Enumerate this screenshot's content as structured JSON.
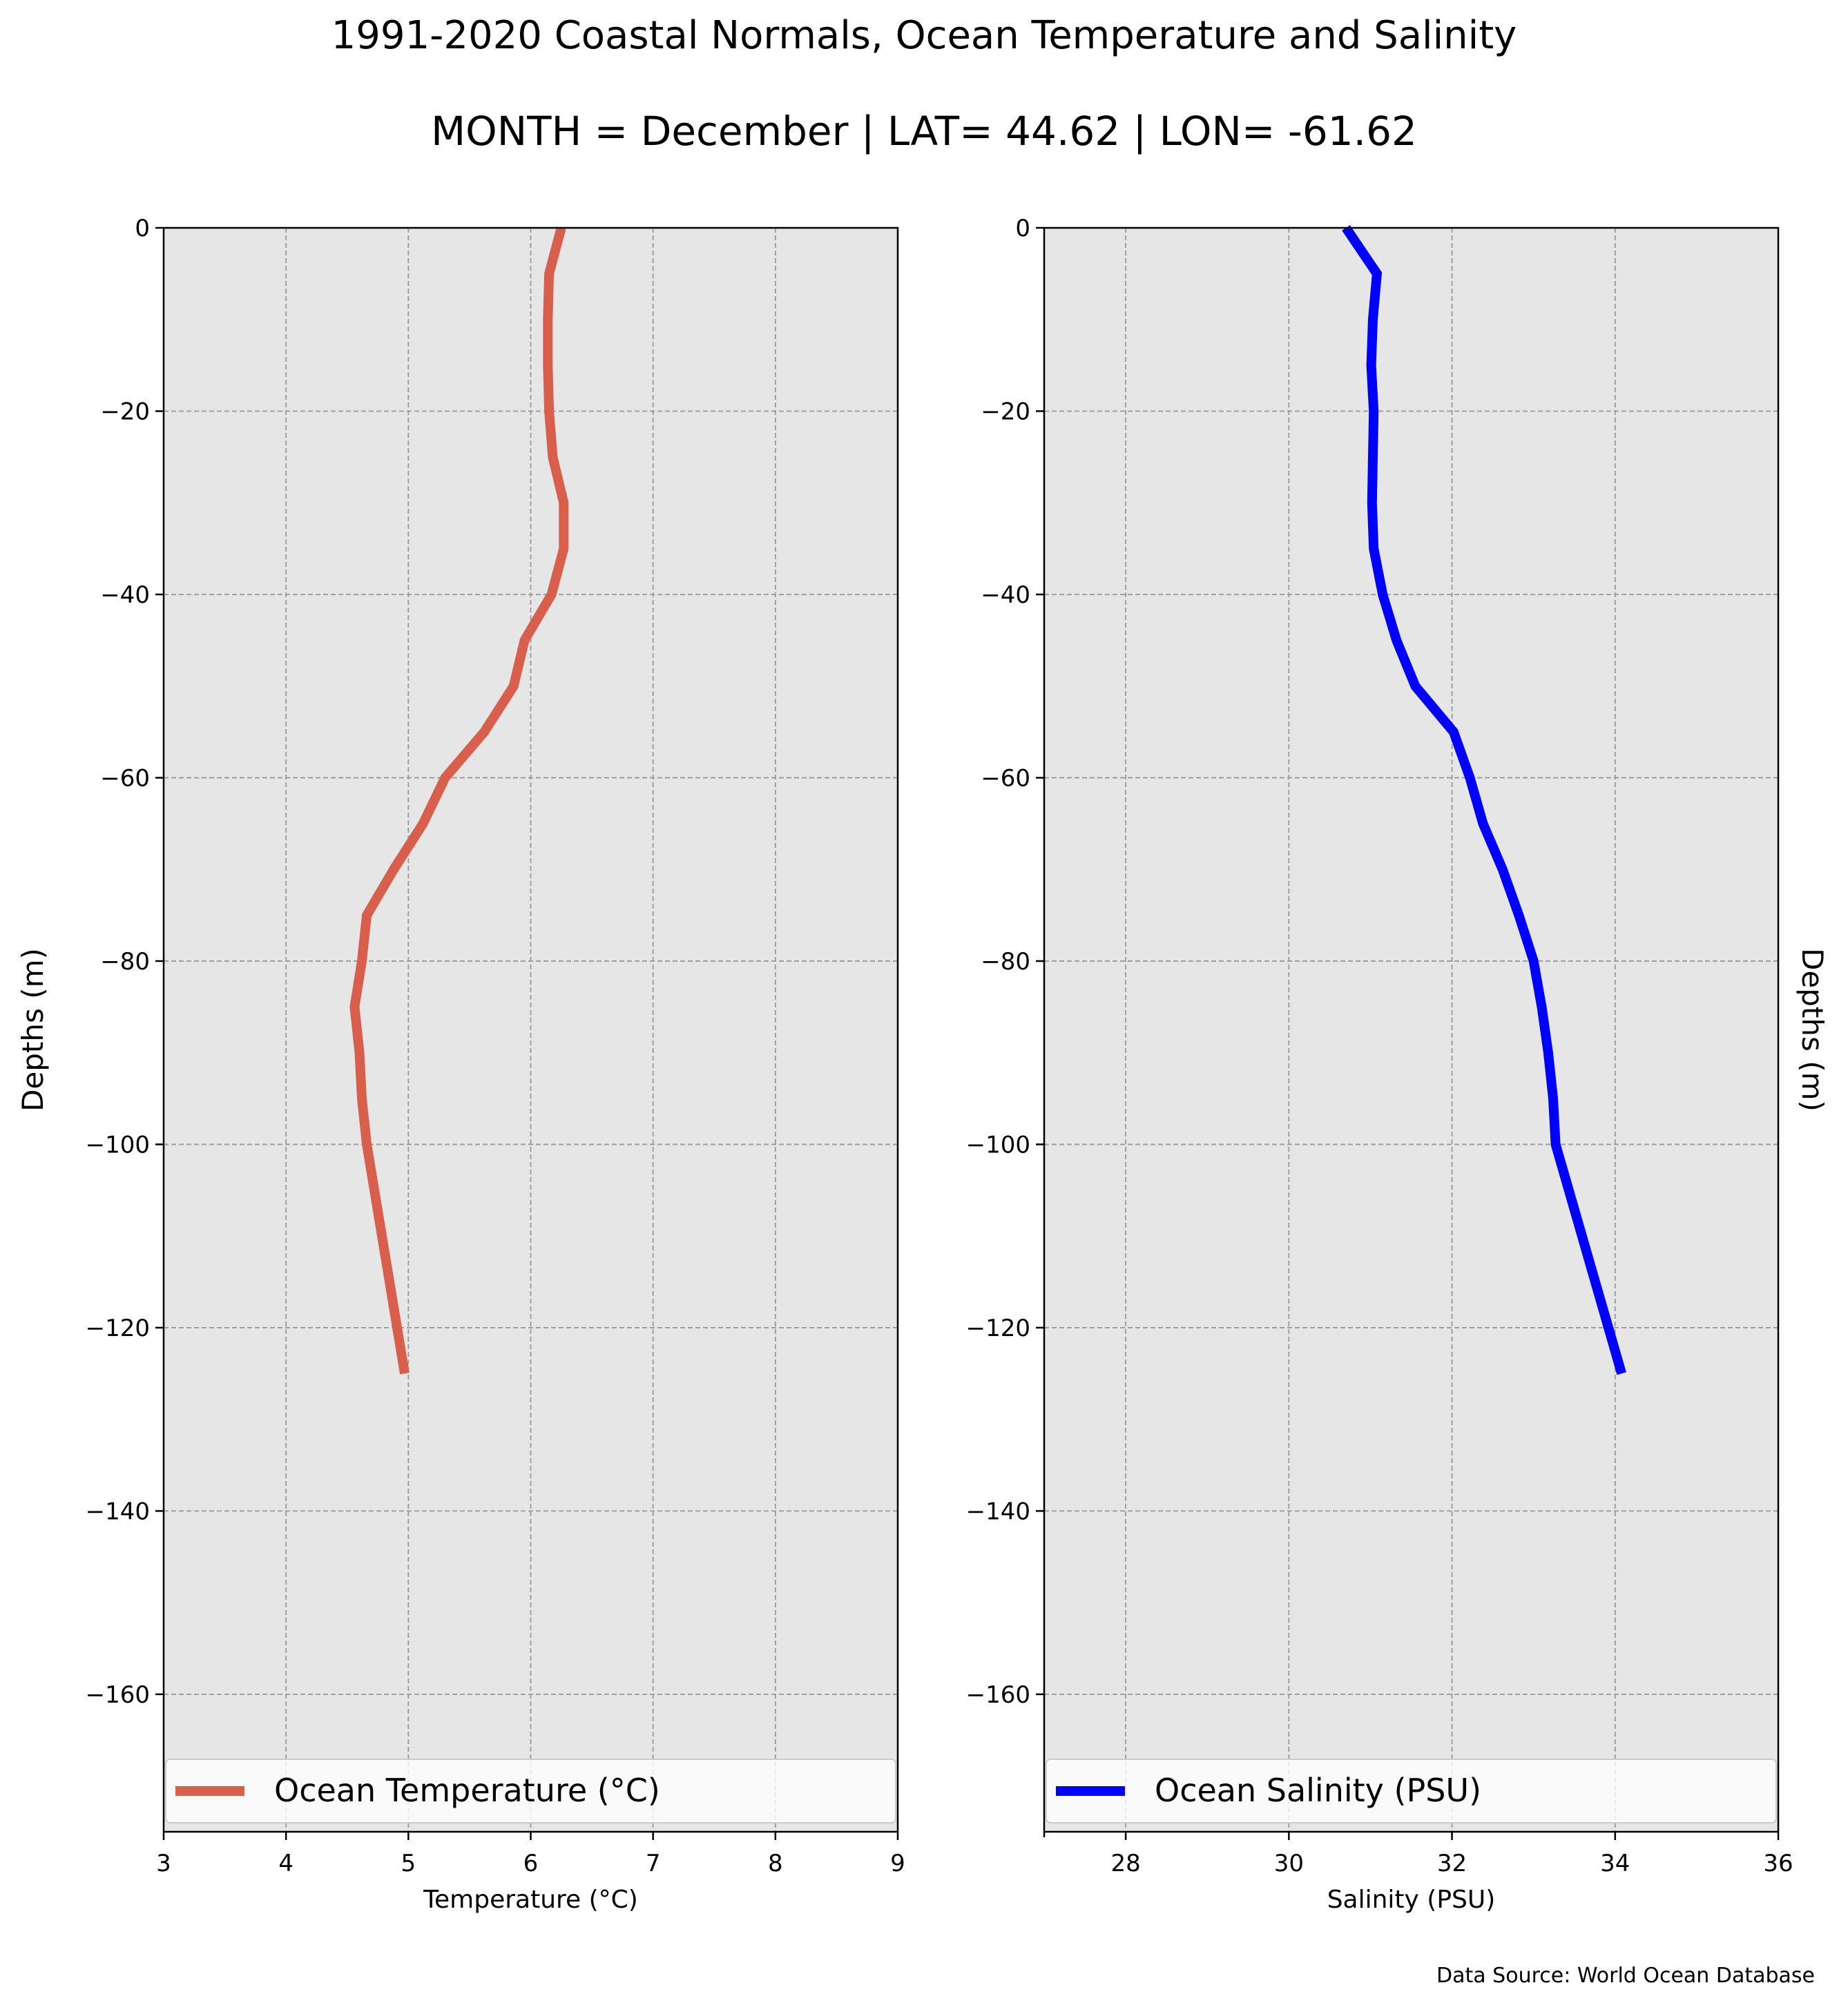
{
  "title": "1991-2020 Coastal Normals, Ocean Temperature and Salinity",
  "subtitle": "MONTH = December | LAT= 44.62 | LON= -61.62",
  "source_note": "Data Source: World Ocean Database",
  "colors": {
    "temperature": "#d75f4b",
    "salinity": "#0000ff",
    "plot_bg": "#e6e6e6",
    "grid": "#999999"
  },
  "chart_data": [
    {
      "type": "line",
      "ylabel": "Depths (m)",
      "ylabel_side": "left",
      "xlabel": "Temperature (°C)",
      "xlim": [
        3,
        9
      ],
      "ylim": [
        -175,
        0
      ],
      "xticks": [
        "3",
        "4",
        "5",
        "6",
        "7",
        "8",
        "9"
      ],
      "yticks": [
        "0",
        "−20",
        "−40",
        "−60",
        "−80",
        "−100",
        "−120",
        "−140",
        "−160"
      ],
      "grid": true,
      "legend": "bottom",
      "series": [
        {
          "name": "Ocean Temperature (°C)",
          "color": "#d75f4b",
          "x": [
            6.25,
            6.15,
            6.14,
            6.14,
            6.15,
            6.18,
            6.27,
            6.27,
            6.17,
            5.95,
            5.86,
            5.62,
            5.3,
            5.12,
            4.88,
            4.66,
            4.62,
            4.56,
            4.6,
            4.62,
            4.66,
            4.97
          ],
          "y": [
            0,
            -5,
            -10,
            -15,
            -20,
            -25,
            -30,
            -35,
            -40,
            -45,
            -50,
            -55,
            -60,
            -65,
            -70,
            -75,
            -80,
            -85,
            -90,
            -95,
            -100,
            -125
          ]
        }
      ]
    },
    {
      "type": "line",
      "ylabel": "Depths (m)",
      "ylabel_side": "right",
      "xlabel": "Salinity (PSU)",
      "xlim": [
        27,
        36
      ],
      "ylim": [
        -175,
        0
      ],
      "xticks": [
        "28",
        "30",
        "32",
        "34",
        "36"
      ],
      "yticks": [
        "0",
        "−20",
        "−40",
        "−60",
        "−80",
        "−100",
        "−120",
        "−140",
        "−160"
      ],
      "grid": true,
      "legend": "bottom",
      "series": [
        {
          "name": "Ocean Salinity (PSU)",
          "color": "#0000ff",
          "x": [
            30.7,
            31.08,
            31.03,
            31.01,
            31.04,
            31.03,
            31.02,
            31.04,
            31.15,
            31.32,
            31.55,
            32.02,
            32.22,
            32.38,
            32.62,
            32.82,
            33.0,
            33.1,
            33.18,
            33.24,
            33.27,
            34.08
          ],
          "y": [
            0,
            -5,
            -10,
            -15,
            -20,
            -25,
            -30,
            -35,
            -40,
            -45,
            -50,
            -55,
            -60,
            -65,
            -70,
            -75,
            -80,
            -85,
            -90,
            -95,
            -100,
            -125
          ]
        }
      ]
    }
  ]
}
